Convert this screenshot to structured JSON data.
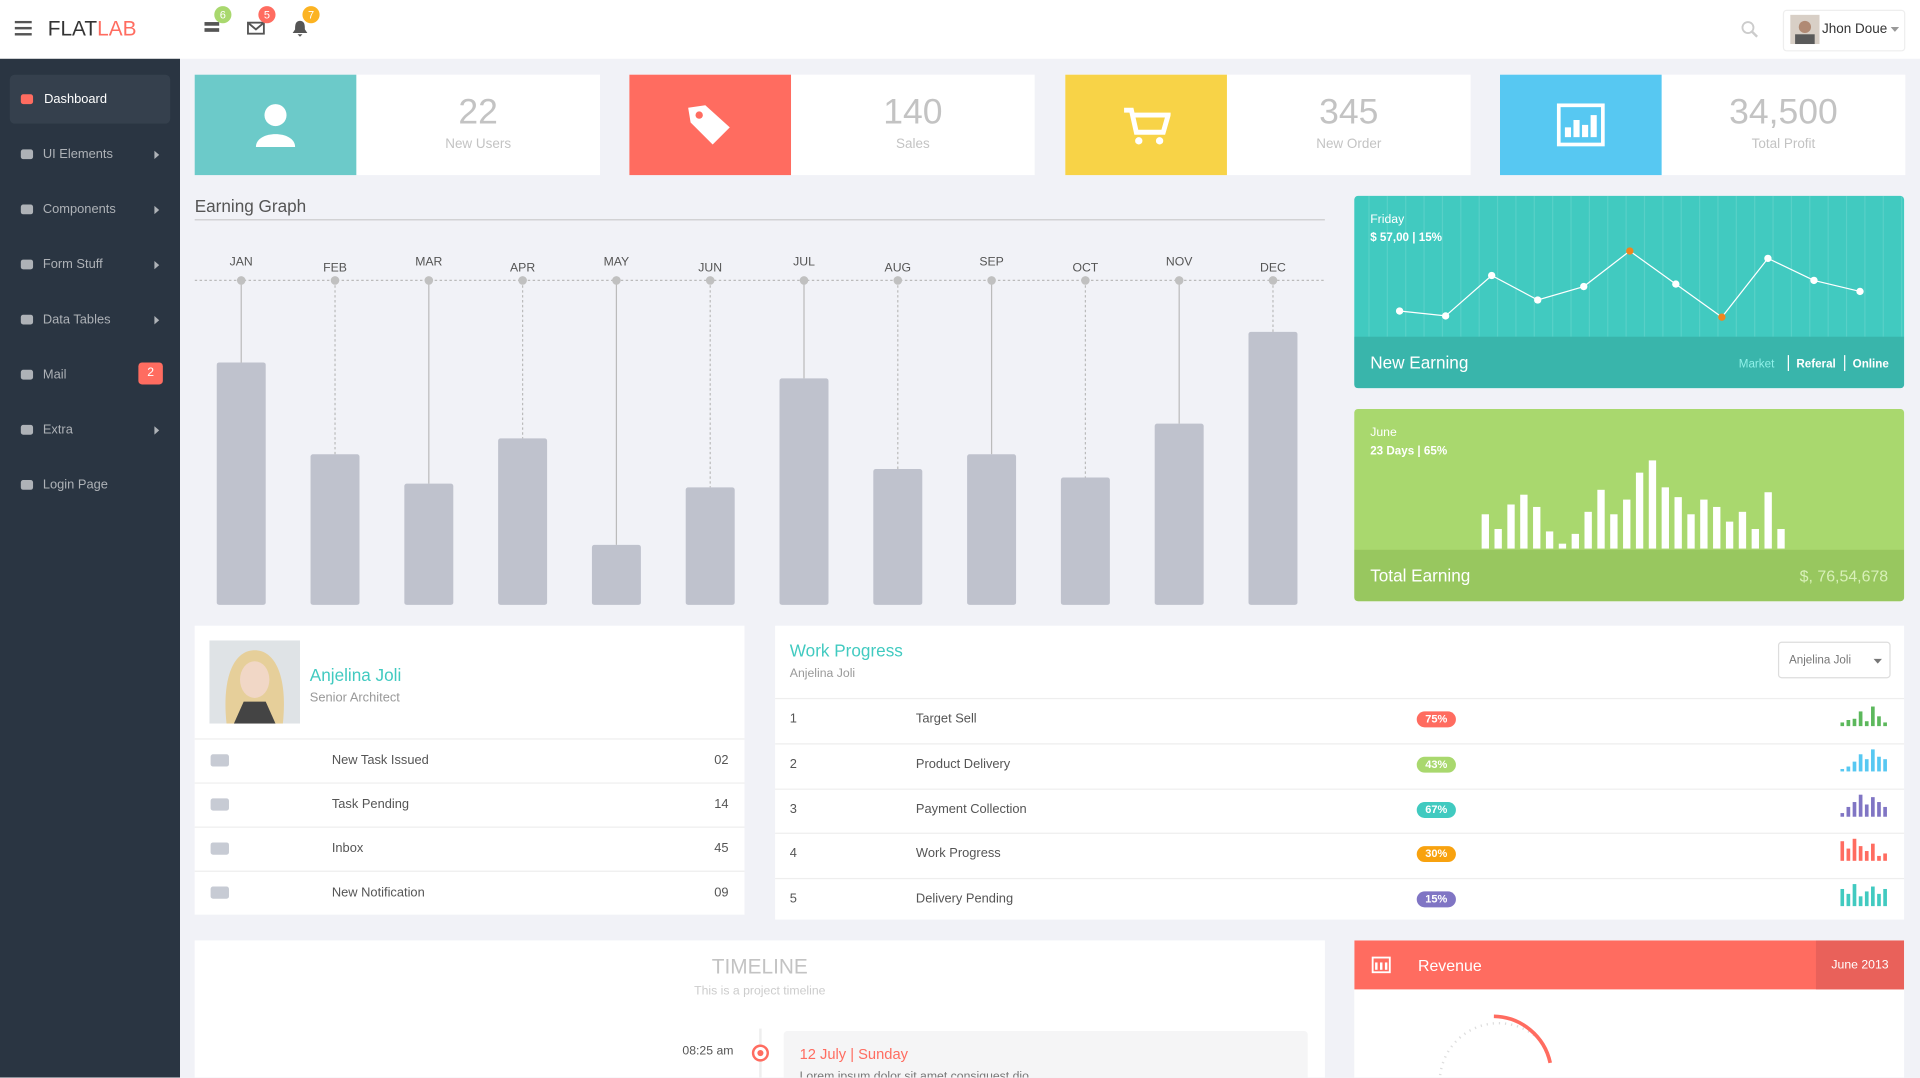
{
  "header": {
    "logo_main": "FLAT",
    "logo_accent": "LAB",
    "badges": [
      "6",
      "5",
      "7"
    ],
    "user": "Jhon Doue"
  },
  "sidebar": {
    "items": [
      {
        "label": "Dashboard",
        "has_submenu": false
      },
      {
        "label": "UI Elements",
        "has_submenu": true
      },
      {
        "label": "Components",
        "has_submenu": true
      },
      {
        "label": "Form Stuff",
        "has_submenu": true
      },
      {
        "label": "Data Tables",
        "has_submenu": true
      },
      {
        "label": "Mail",
        "has_submenu": false,
        "badge": "2"
      },
      {
        "label": "Extra",
        "has_submenu": true
      },
      {
        "label": "Login Page",
        "has_submenu": false
      }
    ]
  },
  "stats": [
    {
      "value": "22",
      "label": "New Users",
      "color": "#6ccac9"
    },
    {
      "value": "140",
      "label": "Sales",
      "color": "#ff6c60"
    },
    {
      "value": "345",
      "label": "New Order",
      "color": "#f8d347"
    },
    {
      "value": "34,500",
      "label": "Total Profit",
      "color": "#57c8f2"
    }
  ],
  "earning_graph": {
    "title": "Earning Graph",
    "months": [
      "JAN",
      "FEB",
      "MAR",
      "APR",
      "MAY",
      "JUN",
      "JUL",
      "AUG",
      "SEP",
      "OCT",
      "NOV",
      "DEC"
    ],
    "values": [
      198,
      123,
      99,
      136,
      49,
      96,
      185,
      111,
      123,
      104,
      148,
      223
    ],
    "color": "#bfc2cd"
  },
  "new_earning": {
    "day": "Friday",
    "detail": "$ 57,00 | 15%",
    "title": "New Earning",
    "tabs": [
      "Market",
      "Referal",
      "Online"
    ],
    "values": [
      16,
      12,
      45,
      25,
      36,
      65,
      38,
      11,
      59,
      41,
      32
    ],
    "point_colors": [
      "#fff",
      "#fff",
      "#fff",
      "#fff",
      "#fff",
      "#f0861f",
      "#fff",
      "#f0861f",
      "#fff",
      "#fff",
      "#fff"
    ]
  },
  "total_earning": {
    "month": "June",
    "detail": "23 Days | 65%",
    "title": "Total Earning",
    "amount": "$, 76,54,678",
    "values": [
      28,
      16,
      36,
      44,
      34,
      14,
      4,
      12,
      30,
      48,
      28,
      40,
      62,
      72,
      50,
      42,
      28,
      40,
      34,
      22,
      30,
      16,
      46,
      16
    ]
  },
  "profile": {
    "name": "Anjelina Joli",
    "role": "Senior Architect",
    "rows": [
      {
        "label": "New Task Issued",
        "count": "02"
      },
      {
        "label": "Task Pending",
        "count": "14"
      },
      {
        "label": "Inbox",
        "count": "45"
      },
      {
        "label": "New Notification",
        "count": "09"
      }
    ]
  },
  "work_progress": {
    "title": "Work Progress",
    "subtitle": "Anjelina Joli",
    "dropdown": "Anjelina Joli",
    "rows": [
      {
        "num": "1",
        "task": "Target Sell",
        "percent": "75%",
        "color": "#ff6c60",
        "spark_color": "#5cb85c",
        "spark": [
          3,
          5,
          6,
          12,
          4,
          16,
          8,
          3
        ]
      },
      {
        "num": "2",
        "task": "Product Delivery",
        "percent": "43%",
        "color": "#a9d86e",
        "spark_color": "#57c8f2",
        "spark": [
          2,
          4,
          8,
          14,
          10,
          18,
          12,
          10
        ]
      },
      {
        "num": "3",
        "task": "Payment Collection",
        "percent": "67%",
        "color": "#41cac0",
        "spark_color": "#8075c4",
        "spark": [
          3,
          8,
          12,
          18,
          10,
          16,
          12,
          8
        ]
      },
      {
        "num": "4",
        "task": "Work Progress",
        "percent": "30%",
        "color": "#f8a20f",
        "spark_color": "#ff6c60",
        "spark": [
          16,
          10,
          18,
          12,
          8,
          14,
          4,
          6
        ]
      },
      {
        "num": "5",
        "task": "Delivery Pending",
        "percent": "15%",
        "color": "#8075c4",
        "spark_color": "#41cac0",
        "spark": [
          14,
          10,
          18,
          8,
          12,
          16,
          10,
          14
        ]
      }
    ]
  },
  "timeline": {
    "title": "TIMELINE",
    "subtitle": "This is a project timeline",
    "time": "08:25 am",
    "date": "12 July | Sunday",
    "text": "Lorem ipsum dolor sit amet consiquest dio"
  },
  "revenue": {
    "title": "Revenue",
    "period": "June 2013"
  }
}
